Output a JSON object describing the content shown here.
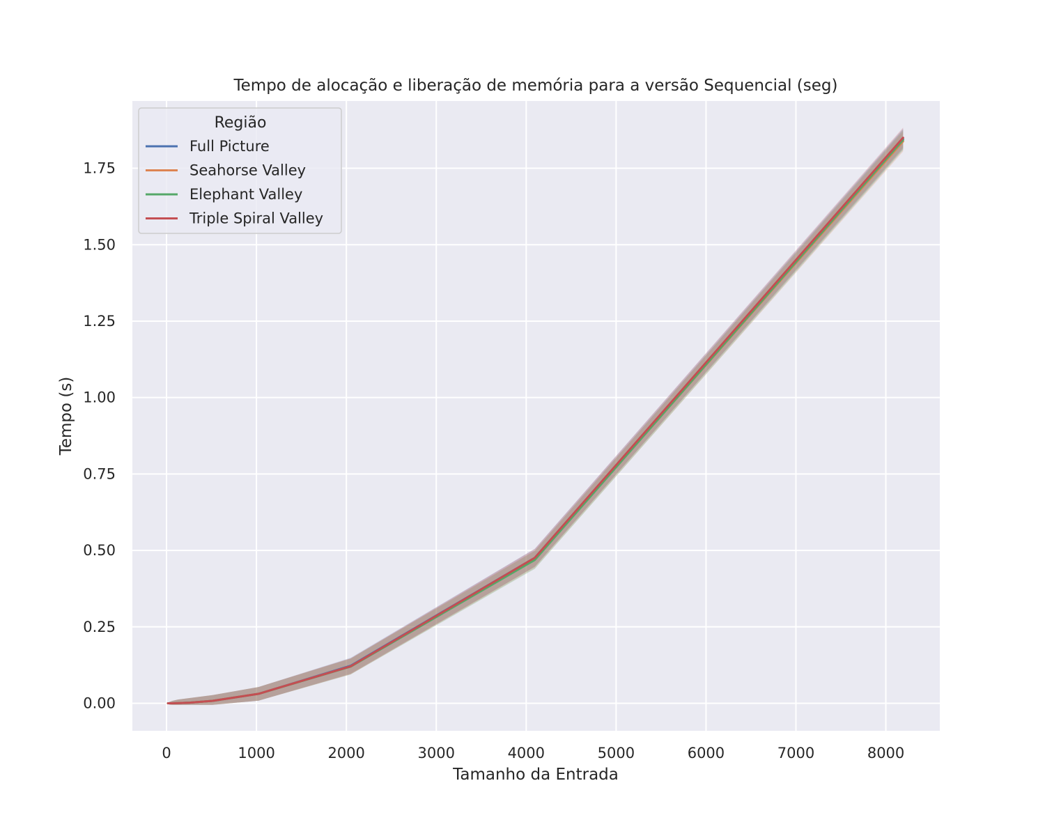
{
  "chart_data": {
    "type": "line",
    "title": "Tempo de alocação e liberação de memória para a versão Sequencial (seg)",
    "xlabel": "Tamanho da Entrada",
    "ylabel": "Tempo (s)",
    "xlim": [
      -380,
      8600
    ],
    "ylim": [
      -0.09,
      1.97
    ],
    "xticks": [
      0,
      1000,
      2000,
      3000,
      4000,
      5000,
      6000,
      7000,
      8000
    ],
    "yticks": [
      0.0,
      0.25,
      0.5,
      0.75,
      1.0,
      1.25,
      1.5,
      1.75
    ],
    "xtick_labels": [
      "0",
      "1000",
      "2000",
      "3000",
      "4000",
      "5000",
      "6000",
      "7000",
      "8000"
    ],
    "ytick_labels": [
      "0.00",
      "0.25",
      "0.50",
      "0.75",
      "1.00",
      "1.25",
      "1.50",
      "1.75"
    ],
    "grid": true,
    "legend": {
      "title": "Região",
      "placement": "top-left"
    },
    "x": [
      16,
      32,
      64,
      128,
      256,
      512,
      1024,
      2048,
      4096,
      8192
    ],
    "series": [
      {
        "name": "Full Picture",
        "color": "#4c72b0",
        "values": [
          0.0,
          0.0,
          0.0,
          0.0005,
          0.002,
          0.008,
          0.031,
          0.123,
          0.476,
          1.846
        ],
        "ci": 0.004
      },
      {
        "name": "Seahorse Valley",
        "color": "#dd8452",
        "values": [
          0.0,
          0.0,
          0.0,
          0.0005,
          0.002,
          0.008,
          0.031,
          0.121,
          0.471,
          1.838
        ],
        "ci": 0.004
      },
      {
        "name": "Elephant Valley",
        "color": "#55a868",
        "values": [
          0.0,
          0.0,
          0.0,
          0.0005,
          0.002,
          0.008,
          0.031,
          0.12,
          0.469,
          1.843
        ],
        "ci": 0.004
      },
      {
        "name": "Triple Spiral Valley",
        "color": "#c44e52",
        "values": [
          0.0,
          0.0,
          0.0,
          0.0005,
          0.002,
          0.008,
          0.031,
          0.121,
          0.476,
          1.85
        ],
        "ci": 0.004
      }
    ]
  }
}
